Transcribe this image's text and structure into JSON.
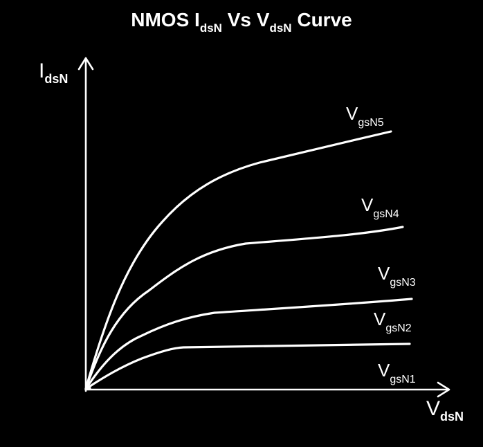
{
  "title": {
    "prefix": "NMOS I",
    "sub1": "dsN",
    "middle": " Vs V",
    "sub2": "dsN",
    "suffix": " Curve"
  },
  "axes": {
    "y": {
      "main": "I",
      "sub": "dsN"
    },
    "x": {
      "main": "V",
      "sub": "dsN"
    }
  },
  "curves": [
    {
      "main": "V",
      "sub": "gsN5"
    },
    {
      "main": "V",
      "sub": "gsN4"
    },
    {
      "main": "V",
      "sub": "gsN3"
    },
    {
      "main": "V",
      "sub": "gsN2"
    },
    {
      "main": "V",
      "sub": "gsN1"
    }
  ],
  "colors": {
    "background": "#000000",
    "ink": "#ffffff"
  }
}
